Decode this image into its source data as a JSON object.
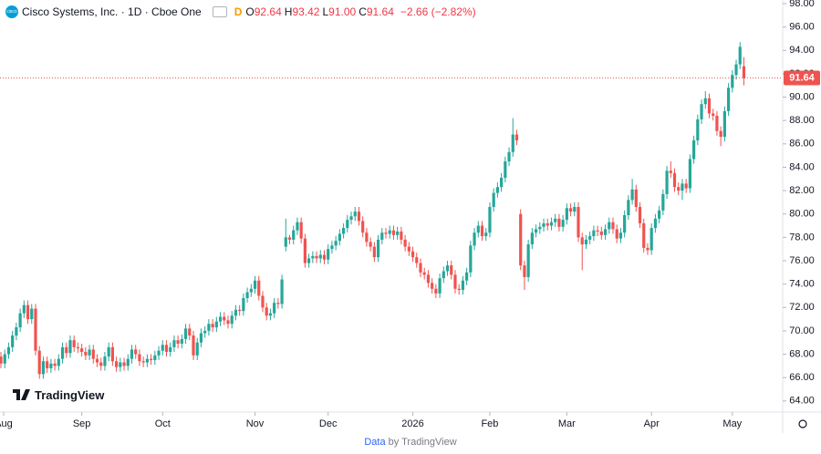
{
  "chart_data": {
    "type": "candlestick",
    "title": "Cisco Systems, Inc. · 1D · Cboe One",
    "interval_badge": "D",
    "ohlc_header": [
      {
        "key": "O",
        "label": "92.64"
      },
      {
        "key": "H",
        "label": "93.42"
      },
      {
        "key": "L",
        "label": "91.00"
      },
      {
        "key": "C",
        "label": "91.64"
      }
    ],
    "change_label": "−2.66 (−2.82%)",
    "last_price_label": "91.64",
    "up_color": "#26a69a",
    "down_color": "#ef5350",
    "xlim": [
      -0.24,
      203.08
    ],
    "ylim": [
      63.05,
      98.31
    ],
    "grid": false,
    "yticks": [
      {
        "value": 64,
        "label": "64.00"
      },
      {
        "value": 66,
        "label": "66.00"
      },
      {
        "value": 68,
        "label": "68.00"
      },
      {
        "value": 70,
        "label": "70.00"
      },
      {
        "value": 72,
        "label": "72.00"
      },
      {
        "value": 74,
        "label": "74.00"
      },
      {
        "value": 76,
        "label": "76.00"
      },
      {
        "value": 78,
        "label": "78.00"
      },
      {
        "value": 80,
        "label": "80.00"
      },
      {
        "value": 82,
        "label": "82.00"
      },
      {
        "value": 84,
        "label": "84.00"
      },
      {
        "value": 86,
        "label": "86.00"
      },
      {
        "value": 88,
        "label": "88.00"
      },
      {
        "value": 90,
        "label": "90.00"
      },
      {
        "value": 92,
        "label": "92.00"
      },
      {
        "value": 94,
        "label": "94.00"
      },
      {
        "value": 96,
        "label": "96.00"
      },
      {
        "value": 98,
        "label": "98.00"
      }
    ],
    "xticks": [
      {
        "value": 0,
        "label": "Aug"
      },
      {
        "value": 21,
        "label": "Sep"
      },
      {
        "value": 42,
        "label": "Oct"
      },
      {
        "value": 66,
        "label": "Nov"
      },
      {
        "value": 85,
        "label": "Dec"
      },
      {
        "value": 107,
        "label": "2026"
      },
      {
        "value": 127,
        "label": "Feb"
      },
      {
        "value": 147,
        "label": "Mar"
      },
      {
        "value": 169,
        "label": "Apr"
      },
      {
        "value": 190,
        "label": "May"
      }
    ],
    "open": [
      67.8,
      67.2,
      68.0,
      68.6,
      69.6,
      70.3,
      71.5,
      72.2,
      71.0,
      71.9,
      68.3,
      66.3,
      67.4,
      66.8,
      67.2,
      67.0,
      67.6,
      68.6,
      68.1,
      69.2,
      68.6,
      68.5,
      68.2,
      67.9,
      68.4,
      67.6,
      67.3,
      67.0,
      67.8,
      68.6,
      67.4,
      66.9,
      67.3,
      67.0,
      67.6,
      68.4,
      68.0,
      67.4,
      67.3,
      67.6,
      67.5,
      67.9,
      68.3,
      68.8,
      68.2,
      68.6,
      69.2,
      68.9,
      69.3,
      70.2,
      69.6,
      67.9,
      69.0,
      69.8,
      70.0,
      70.6,
      70.3,
      70.8,
      71.2,
      70.9,
      70.6,
      71.3,
      71.8,
      71.7,
      72.8,
      73.3,
      73.6,
      74.3,
      73.0,
      72.0,
      71.3,
      71.5,
      72.4,
      72.3,
      77.2,
      78.0,
      77.8,
      78.6,
      79.3,
      77.9,
      75.8,
      76.2,
      76.4,
      76.2,
      76.5,
      76.1,
      77.0,
      77.3,
      77.7,
      78.3,
      78.8,
      79.5,
      79.8,
      80.2,
      79.4,
      78.4,
      77.6,
      77.2,
      76.3,
      77.8,
      78.4,
      78.3,
      78.6,
      78.2,
      78.5,
      77.8,
      77.2,
      76.8,
      76.3,
      75.8,
      75.0,
      74.8,
      74.1,
      73.6,
      73.2,
      74.5,
      75.1,
      75.6,
      74.8,
      73.6,
      73.5,
      74.3,
      75.0,
      77.3,
      78.4,
      79.0,
      78.1,
      78.4,
      80.6,
      81.8,
      82.3,
      83.1,
      84.5,
      85.3,
      86.8,
      80.0,
      75.6,
      74.6,
      77.4,
      78.4,
      78.7,
      78.9,
      79.2,
      79.0,
      79.3,
      79.6,
      78.9,
      79.5,
      80.5,
      80.2,
      80.6,
      78.0,
      77.4,
      77.8,
      78.1,
      78.6,
      78.5,
      78.2,
      78.7,
      79.3,
      78.7,
      77.9,
      78.4,
      79.9,
      81.2,
      82.1,
      80.6,
      79.2,
      77.1,
      76.9,
      78.8,
      79.6,
      80.3,
      81.7,
      83.7,
      83.5,
      82.3,
      82.0,
      82.6,
      82.2,
      84.7,
      86.3,
      88.1,
      89.4,
      89.9,
      88.6,
      88.4,
      87.1,
      86.6,
      88.8,
      90.8,
      91.9,
      92.8,
      92.64
    ],
    "high": [
      68.2,
      68.4,
      69.0,
      70.0,
      70.7,
      71.9,
      72.6,
      72.6,
      72.3,
      72.3,
      68.7,
      67.8,
      67.8,
      67.6,
      67.6,
      68.0,
      69.0,
      69.0,
      69.6,
      69.6,
      69.0,
      68.9,
      68.6,
      68.8,
      68.8,
      68.0,
      67.7,
      68.2,
      69.0,
      69.0,
      67.8,
      67.7,
      67.7,
      68.0,
      68.8,
      68.8,
      68.4,
      67.8,
      68.0,
      68.0,
      68.3,
      68.7,
      69.2,
      69.2,
      69.0,
      69.6,
      69.6,
      69.7,
      70.6,
      70.6,
      70.0,
      69.4,
      70.2,
      70.4,
      71.0,
      71.0,
      71.2,
      71.6,
      71.6,
      71.3,
      71.7,
      72.2,
      72.2,
      73.2,
      73.7,
      74.0,
      74.7,
      74.7,
      73.4,
      72.4,
      71.9,
      72.8,
      72.8,
      74.8,
      79.6,
      78.2,
      79.0,
      79.7,
      79.7,
      78.3,
      76.6,
      76.8,
      76.8,
      76.9,
      76.9,
      77.4,
      77.7,
      78.1,
      78.7,
      79.2,
      79.9,
      80.2,
      80.6,
      80.6,
      79.8,
      78.8,
      78.0,
      77.6,
      78.2,
      78.8,
      78.8,
      79.0,
      79.0,
      78.9,
      78.9,
      78.2,
      77.6,
      77.2,
      76.7,
      76.2,
      75.4,
      75.2,
      74.5,
      74.0,
      74.9,
      75.5,
      76.0,
      76.0,
      75.2,
      74.0,
      74.7,
      75.4,
      77.7,
      78.8,
      79.4,
      79.4,
      78.8,
      81.0,
      82.2,
      82.7,
      83.5,
      84.9,
      85.7,
      88.2,
      87.2,
      80.4,
      76.0,
      77.8,
      78.8,
      79.1,
      79.3,
      79.6,
      79.6,
      79.7,
      80.0,
      80.0,
      79.9,
      80.9,
      80.9,
      81.0,
      81.0,
      78.4,
      78.2,
      78.5,
      79.0,
      79.0,
      78.9,
      79.1,
      79.7,
      79.7,
      79.1,
      78.8,
      80.3,
      81.6,
      83.0,
      82.5,
      81.0,
      79.6,
      77.5,
      79.2,
      80.0,
      80.7,
      82.1,
      84.1,
      84.5,
      83.9,
      82.7,
      83.0,
      83.0,
      85.1,
      86.7,
      88.5,
      89.8,
      90.5,
      90.3,
      89.0,
      88.8,
      87.5,
      89.2,
      91.2,
      92.3,
      93.2,
      94.7,
      93.42
    ],
    "low": [
      66.8,
      66.8,
      67.6,
      68.2,
      69.2,
      69.9,
      71.1,
      70.6,
      70.6,
      67.9,
      65.9,
      65.9,
      66.4,
      66.4,
      66.6,
      66.6,
      67.2,
      67.7,
      67.7,
      68.2,
      68.1,
      67.8,
      67.5,
      67.5,
      67.2,
      66.9,
      66.6,
      66.6,
      67.4,
      67.0,
      66.5,
      66.5,
      66.6,
      66.6,
      67.2,
      67.6,
      67.0,
      66.9,
      66.9,
      67.1,
      67.1,
      67.5,
      67.9,
      67.8,
      67.8,
      68.2,
      68.5,
      68.5,
      68.9,
      69.2,
      67.5,
      67.5,
      68.6,
      69.4,
      69.6,
      69.9,
      69.9,
      70.4,
      70.5,
      70.2,
      70.2,
      70.9,
      71.3,
      71.3,
      72.4,
      72.9,
      73.2,
      72.6,
      71.6,
      70.9,
      70.9,
      71.1,
      71.9,
      71.9,
      76.8,
      77.4,
      77.4,
      78.2,
      77.5,
      75.4,
      75.4,
      75.8,
      75.8,
      75.8,
      75.7,
      75.7,
      76.6,
      76.9,
      77.3,
      77.9,
      78.4,
      79.1,
      79.4,
      79.0,
      78.0,
      77.2,
      76.8,
      75.9,
      75.9,
      77.4,
      77.9,
      77.9,
      77.8,
      77.8,
      77.4,
      76.8,
      76.4,
      75.9,
      75.4,
      74.6,
      74.4,
      73.7,
      73.2,
      72.8,
      72.8,
      74.1,
      74.7,
      74.4,
      73.2,
      73.1,
      73.1,
      73.9,
      74.6,
      76.9,
      78.0,
      77.7,
      77.7,
      78.0,
      80.2,
      81.4,
      81.9,
      82.7,
      84.1,
      84.9,
      85.9,
      75.2,
      73.5,
      74.2,
      77.0,
      78.0,
      78.3,
      78.5,
      78.6,
      78.6,
      78.9,
      78.5,
      78.5,
      79.1,
      79.8,
      79.8,
      77.6,
      75.2,
      77.0,
      77.4,
      77.7,
      78.1,
      77.8,
      77.8,
      78.3,
      78.3,
      77.5,
      77.5,
      78.0,
      79.5,
      80.8,
      80.2,
      78.8,
      76.7,
      76.5,
      76.5,
      78.4,
      79.2,
      79.9,
      81.3,
      83.1,
      81.9,
      81.6,
      81.2,
      81.8,
      81.8,
      84.3,
      85.9,
      87.7,
      89.0,
      88.2,
      88.0,
      86.7,
      85.8,
      86.2,
      88.4,
      90.4,
      91.5,
      92.4,
      91.0
    ],
    "close": [
      67.2,
      68.0,
      68.6,
      69.6,
      70.3,
      71.5,
      72.2,
      71.0,
      71.9,
      68.3,
      66.3,
      67.4,
      66.8,
      67.2,
      67.0,
      67.6,
      68.6,
      68.1,
      69.2,
      68.6,
      68.5,
      68.2,
      67.9,
      68.4,
      67.6,
      67.3,
      67.0,
      67.8,
      68.6,
      67.4,
      66.9,
      67.3,
      67.0,
      67.6,
      68.4,
      68.0,
      67.4,
      67.3,
      67.6,
      67.5,
      67.9,
      68.3,
      68.8,
      68.2,
      68.6,
      69.2,
      68.9,
      69.3,
      70.2,
      69.6,
      67.9,
      69.0,
      69.8,
      70.0,
      70.6,
      70.3,
      70.8,
      71.2,
      70.9,
      70.6,
      71.3,
      71.8,
      71.7,
      72.8,
      73.3,
      73.6,
      74.3,
      73.0,
      72.0,
      71.3,
      71.5,
      72.4,
      72.3,
      74.4,
      78.0,
      77.8,
      78.6,
      79.3,
      77.9,
      75.8,
      76.2,
      76.4,
      76.2,
      76.5,
      76.1,
      77.0,
      77.3,
      77.7,
      78.3,
      78.8,
      79.5,
      79.8,
      80.2,
      79.4,
      78.4,
      77.6,
      77.2,
      76.3,
      77.8,
      78.4,
      78.3,
      78.6,
      78.2,
      78.5,
      77.8,
      77.2,
      76.8,
      76.3,
      75.8,
      75.0,
      74.8,
      74.1,
      73.6,
      73.2,
      74.5,
      75.1,
      75.6,
      74.8,
      73.6,
      73.5,
      74.3,
      75.0,
      77.3,
      78.4,
      79.0,
      78.1,
      78.4,
      80.6,
      81.8,
      82.3,
      83.1,
      84.5,
      85.3,
      86.8,
      86.3,
      75.6,
      74.6,
      77.4,
      78.4,
      78.7,
      78.9,
      79.2,
      79.0,
      79.3,
      79.6,
      78.9,
      79.5,
      80.5,
      80.2,
      80.6,
      78.0,
      77.4,
      77.8,
      78.1,
      78.6,
      78.5,
      78.2,
      78.7,
      79.3,
      78.7,
      77.9,
      78.4,
      79.9,
      81.2,
      82.1,
      80.6,
      79.2,
      77.1,
      76.9,
      78.8,
      79.6,
      80.3,
      81.7,
      83.7,
      83.5,
      82.3,
      82.0,
      82.6,
      82.2,
      84.7,
      86.3,
      88.1,
      89.4,
      89.9,
      88.6,
      88.4,
      87.1,
      86.6,
      88.8,
      90.8,
      91.9,
      92.8,
      94.3,
      91.64
    ],
    "logo_text": "TradingView",
    "footer": {
      "link": "Data",
      "rest": "by TradingView"
    }
  }
}
